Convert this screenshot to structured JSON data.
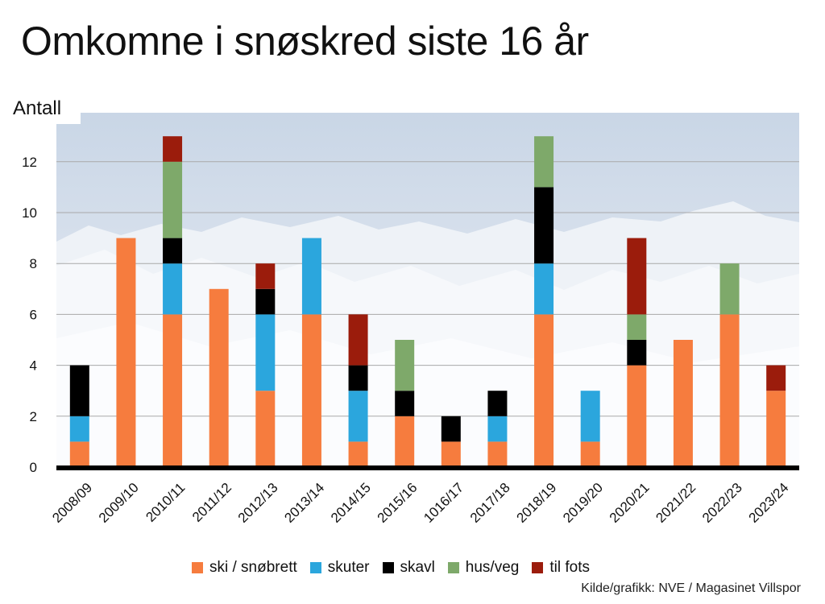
{
  "chart_data": {
    "type": "bar",
    "stacked": true,
    "title": "Omkomne i snøskred siste 16 år",
    "xlabel": "",
    "ylabel": "Antall",
    "ylim": [
      0,
      13.5
    ],
    "yticks": [
      "0",
      "2",
      "4",
      "6",
      "8",
      "10",
      "12"
    ],
    "grid": true,
    "legend_position": "bottom",
    "categories": [
      "2008/09",
      "2009/10",
      "2010/11",
      "2011/12",
      "2012/13",
      "2013/14",
      "2014/15",
      "2015/16",
      "1016/17",
      "2017/18",
      "2018/19",
      "2019/20",
      "2020/21",
      "2021/22",
      "2022/23",
      "2023/24"
    ],
    "series": [
      {
        "name": "ski / snøbrett",
        "color": "#f67c3e",
        "values": [
          1,
          9,
          6,
          7,
          3,
          6,
          1,
          2,
          1,
          1,
          6,
          1,
          4,
          5,
          6,
          3
        ]
      },
      {
        "name": "skuter",
        "color": "#2ba6dd",
        "values": [
          1,
          0,
          2,
          0,
          3,
          3,
          2,
          0,
          0,
          1,
          2,
          2,
          0,
          0,
          0,
          0
        ]
      },
      {
        "name": "skavl",
        "color": "#000000",
        "values": [
          2,
          0,
          1,
          0,
          1,
          0,
          1,
          1,
          1,
          1,
          3,
          0,
          1,
          0,
          0,
          0
        ]
      },
      {
        "name": "hus/veg",
        "color": "#7ea96a",
        "values": [
          0,
          0,
          3,
          0,
          0,
          0,
          0,
          2,
          0,
          0,
          2,
          0,
          1,
          0,
          2,
          0
        ]
      },
      {
        "name": "til fots",
        "color": "#9b1c0c",
        "values": [
          0,
          0,
          1,
          0,
          1,
          0,
          2,
          0,
          0,
          0,
          0,
          0,
          3,
          0,
          0,
          1
        ]
      }
    ]
  },
  "source": "Kilde/grafikk: NVE / Magasinet Villspor"
}
